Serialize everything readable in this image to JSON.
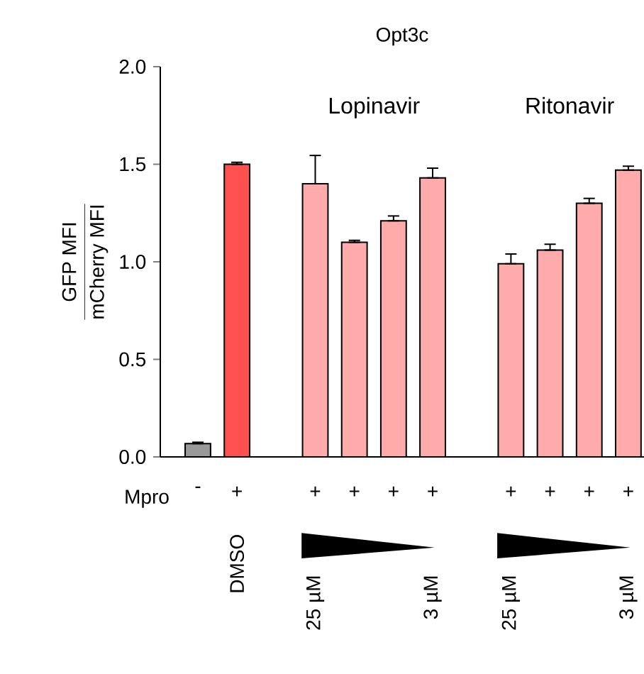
{
  "chart_data": {
    "type": "bar",
    "title": "Opt3c",
    "ylabel": "\\frac{\\mbox{GFP MFI}}{\\mbox{mCherry MFI}}",
    "categories": [
      "-",
      "+",
      null,
      "+",
      "+",
      "+",
      "+",
      null,
      "+",
      "+",
      "+",
      "+"
    ],
    "values": [
      0.068,
      1.5,
      null,
      1.4,
      1.1,
      1.21,
      1.43,
      null,
      0.99,
      1.06,
      1.3,
      1.47
    ],
    "errors": [
      [
        0.068,
        0.075
      ],
      [
        1.5,
        1.51
      ],
      null,
      [
        1.4,
        1.545
      ],
      [
        1.1,
        1.11
      ],
      [
        1.21,
        1.235
      ],
      [
        1.43,
        1.48
      ],
      null,
      [
        0.99,
        1.04
      ],
      [
        1.06,
        1.09
      ],
      [
        1.3,
        1.325
      ],
      [
        1.47,
        1.49
      ]
    ],
    "colors": [
      "#999999",
      "#ff5050",
      null,
      "#ffabab",
      "#ffabab",
      "#ffabab",
      "#ffabab",
      null,
      "#ffabab",
      "#ffabab",
      "#ffabab",
      "#ffabab"
    ],
    "ylim": [
      0,
      2.0
    ],
    "yticks": [
      {
        "value": 0,
        "label": "0.0"
      },
      {
        "value": 0.5,
        "label": "0.5"
      },
      {
        "value": 1.0,
        "label": "1.0"
      },
      {
        "value": 1.5,
        "label": "1.5"
      },
      {
        "value": 2.0,
        "label": "2.0"
      }
    ],
    "annotations": [
      "Lopinavir",
      "Ritonavir",
      "Mpro",
      "DMSO",
      "25 µM",
      "3 µM",
      "25 µM",
      "3 µM"
    ],
    "grid": false
  }
}
